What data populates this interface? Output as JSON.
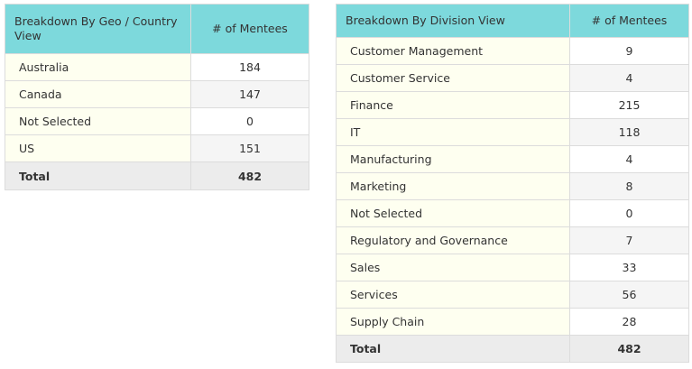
{
  "geo_table": {
    "header_label": "Breakdown By Geo / Country View",
    "header_value": "# of Mentees",
    "rows": [
      {
        "label": "Australia",
        "value": "184"
      },
      {
        "label": "Canada",
        "value": "147"
      },
      {
        "label": "Not Selected",
        "value": "0"
      },
      {
        "label": "US",
        "value": "151"
      }
    ],
    "total": {
      "label": "Total",
      "value": "482"
    }
  },
  "division_table": {
    "header_label": "Breakdown By Division View",
    "header_value": "# of Mentees",
    "rows": [
      {
        "label": "Customer Management",
        "value": "9"
      },
      {
        "label": "Customer Service",
        "value": "4"
      },
      {
        "label": "Finance",
        "value": "215"
      },
      {
        "label": "IT",
        "value": "118"
      },
      {
        "label": "Manufacturing",
        "value": "4"
      },
      {
        "label": "Marketing",
        "value": "8"
      },
      {
        "label": "Not Selected",
        "value": "0"
      },
      {
        "label": "Regulatory and Governance",
        "value": "7"
      },
      {
        "label": "Sales",
        "value": "33"
      },
      {
        "label": "Services",
        "value": "56"
      },
      {
        "label": "Supply Chain",
        "value": "28"
      }
    ],
    "total": {
      "label": "Total",
      "value": "482"
    }
  },
  "colors": {
    "header_bg": "#7dd9dc",
    "label_cell_bg": "#fefff0",
    "alt_value_bg": "#f5f5f5",
    "total_bg": "#ececec"
  }
}
